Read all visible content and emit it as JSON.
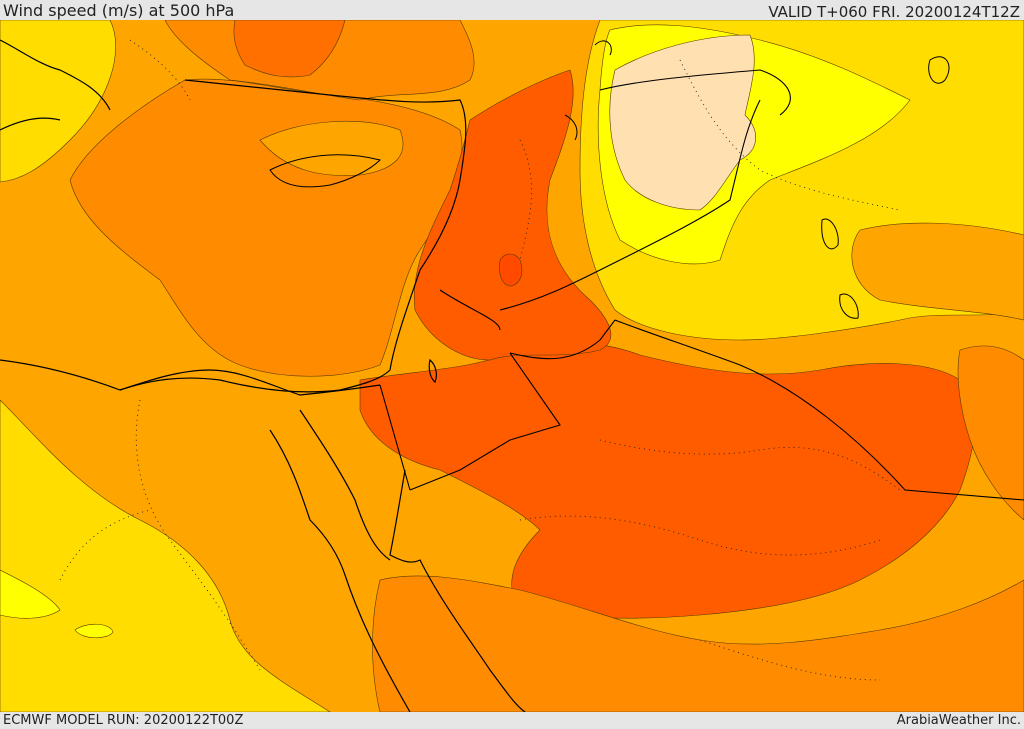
{
  "header": {
    "title": "Wind speed (m/s) at 500 hPa",
    "valid": "VALID T+060 FRI. 20200124T12Z"
  },
  "footer": {
    "model_run": "ECMWF MODEL RUN: 20200122T00Z",
    "credit": "ArabiaWeather Inc."
  },
  "colors": {
    "band_low": "#FFFF00",
    "band_1": "#FFDD00",
    "band_2": "#FFA500",
    "band_3": "#FF8C00",
    "band_4": "#FF7000",
    "band_5": "#FF5C00",
    "band_6": "#FF4A00",
    "band_pale": "#FFE0B0",
    "coast": "#000000"
  }
}
